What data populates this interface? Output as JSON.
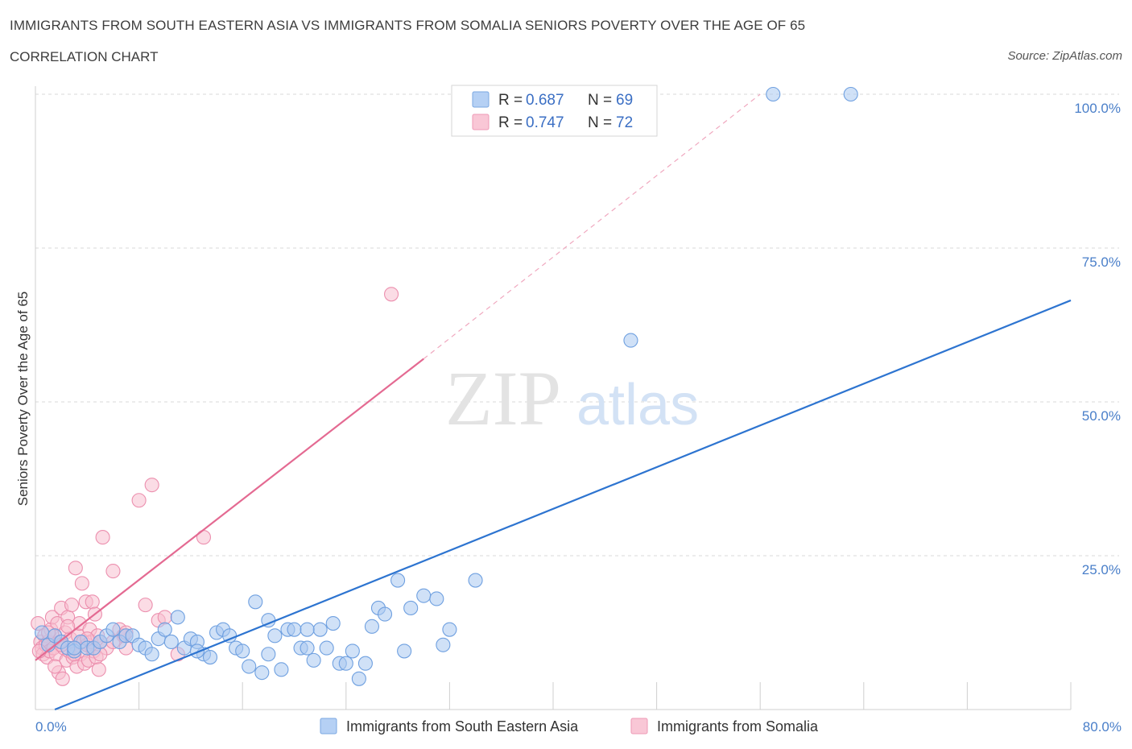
{
  "header": {
    "title": "IMMIGRANTS FROM SOUTH EASTERN ASIA VS IMMIGRANTS FROM SOMALIA SENIORS POVERTY OVER THE AGE OF 65",
    "subtitle": "CORRELATION CHART",
    "source": "Source: ZipAtlas.com"
  },
  "watermark": {
    "zip": "ZIP",
    "atlas": "atlas"
  },
  "legend": {
    "r_label": "R =",
    "n_label": "N =",
    "entries": [
      {
        "r": "0.687",
        "n": "69"
      },
      {
        "r": "0.747",
        "n": "72"
      }
    ]
  },
  "colors": {
    "blue_fill": "#a9c8f0",
    "blue_stroke": "#6fa0e0",
    "blue_line": "#2d74d0",
    "pink_fill": "#f7bfd0",
    "pink_stroke": "#ec8fae",
    "pink_line": "#e46a92",
    "grid": "#d9d9d9",
    "tick_text": "#4a7fc9"
  },
  "chart_data": {
    "type": "scatter",
    "title": "IMMIGRANTS FROM SOUTH EASTERN ASIA VS IMMIGRANTS FROM SOMALIA SENIORS POVERTY OVER THE AGE OF 65",
    "xlabel": "",
    "ylabel": "Seniors Poverty Over the Age of 65",
    "xlim": [
      0,
      80
    ],
    "ylim": [
      0,
      100
    ],
    "x_tick_labels": [
      "0.0%",
      "80.0%"
    ],
    "y_tick_labels": [
      "25.0%",
      "50.0%",
      "75.0%",
      "100.0%"
    ],
    "y_ticks": [
      25,
      50,
      75,
      100
    ],
    "x_gridlines": [
      0,
      8,
      16,
      24,
      32,
      40,
      48,
      56,
      64,
      72,
      80
    ],
    "legend_position": "top-center",
    "series": [
      {
        "name": "Immigrants from South Eastern Asia",
        "color": "#6fa0e0",
        "R": 0.687,
        "N": 69,
        "trend": {
          "x": [
            1.5,
            80
          ],
          "y": [
            0,
            66.5
          ]
        },
        "points": [
          [
            0.5,
            12.5
          ],
          [
            1,
            10.5
          ],
          [
            1.5,
            12
          ],
          [
            2,
            11
          ],
          [
            2.5,
            10
          ],
          [
            3,
            9.5
          ],
          [
            3.5,
            11
          ],
          [
            4,
            10
          ],
          [
            4.5,
            10
          ],
          [
            5,
            11
          ],
          [
            5.5,
            12
          ],
          [
            6,
            13
          ],
          [
            6.5,
            11
          ],
          [
            7,
            12
          ],
          [
            7.5,
            12
          ],
          [
            8,
            10.5
          ],
          [
            8.5,
            10
          ],
          [
            9,
            9
          ],
          [
            9.5,
            11.5
          ],
          [
            10,
            13
          ],
          [
            10.5,
            11
          ],
          [
            11,
            15
          ],
          [
            11.5,
            10
          ],
          [
            12,
            11.5
          ],
          [
            12.5,
            11
          ],
          [
            13,
            9
          ],
          [
            13.5,
            8.5
          ],
          [
            14,
            12.5
          ],
          [
            14.5,
            13
          ],
          [
            15,
            12
          ],
          [
            15.5,
            10
          ],
          [
            16,
            9.5
          ],
          [
            16.5,
            7
          ],
          [
            17,
            17.5
          ],
          [
            17.5,
            6
          ],
          [
            18,
            14.5
          ],
          [
            18.5,
            12
          ],
          [
            19,
            6.5
          ],
          [
            19.5,
            13
          ],
          [
            20,
            13
          ],
          [
            20.5,
            10
          ],
          [
            21,
            10
          ],
          [
            21.5,
            8
          ],
          [
            22,
            13
          ],
          [
            22.5,
            10
          ],
          [
            23,
            14
          ],
          [
            23.5,
            7.5
          ],
          [
            24,
            7.5
          ],
          [
            24.5,
            9.5
          ],
          [
            25,
            5
          ],
          [
            25.5,
            7.5
          ],
          [
            26,
            13.5
          ],
          [
            26.5,
            16.5
          ],
          [
            27,
            15.5
          ],
          [
            28,
            21
          ],
          [
            28.5,
            9.5
          ],
          [
            29,
            16.5
          ],
          [
            30,
            18.5
          ],
          [
            31,
            18
          ],
          [
            31.5,
            10.5
          ],
          [
            32,
            13
          ],
          [
            34,
            21
          ],
          [
            46,
            60
          ],
          [
            57,
            100
          ],
          [
            63,
            100
          ],
          [
            18,
            9
          ],
          [
            12.5,
            9.5
          ],
          [
            21,
            13
          ],
          [
            3,
            10
          ]
        ]
      },
      {
        "name": "Immigrants from Somalia",
        "color": "#ec8fae",
        "R": 0.747,
        "N": 72,
        "trend": {
          "x": [
            0,
            30
          ],
          "y": [
            8,
            57
          ]
        },
        "trend_dashed": {
          "x": [
            30,
            56
          ],
          "y": [
            57,
            100
          ]
        },
        "points": [
          [
            0.2,
            14
          ],
          [
            0.4,
            11
          ],
          [
            0.5,
            10
          ],
          [
            0.6,
            9
          ],
          [
            0.7,
            12
          ],
          [
            0.8,
            10.5
          ],
          [
            0.9,
            8.5
          ],
          [
            1,
            11
          ],
          [
            1.1,
            9.5
          ],
          [
            1.2,
            13
          ],
          [
            1.3,
            15
          ],
          [
            1.4,
            10
          ],
          [
            1.5,
            12
          ],
          [
            1.6,
            9
          ],
          [
            1.7,
            14
          ],
          [
            1.8,
            6
          ],
          [
            1.9,
            11
          ],
          [
            2,
            16.5
          ],
          [
            2.1,
            5
          ],
          [
            2.2,
            10
          ],
          [
            2.3,
            12.5
          ],
          [
            2.4,
            8
          ],
          [
            2.5,
            15
          ],
          [
            2.6,
            9.5
          ],
          [
            2.7,
            11.5
          ],
          [
            2.8,
            17
          ],
          [
            2.9,
            8.5
          ],
          [
            3,
            10
          ],
          [
            3.1,
            23
          ],
          [
            3.2,
            7
          ],
          [
            3.3,
            12
          ],
          [
            3.4,
            14
          ],
          [
            3.5,
            9
          ],
          [
            3.6,
            20.5
          ],
          [
            3.7,
            11
          ],
          [
            3.8,
            7.5
          ],
          [
            3.9,
            17.5
          ],
          [
            4,
            10.5
          ],
          [
            4.1,
            8
          ],
          [
            4.2,
            13
          ],
          [
            4.3,
            11
          ],
          [
            4.4,
            17.5
          ],
          [
            4.5,
            9.5
          ],
          [
            4.6,
            15.5
          ],
          [
            4.7,
            8.5
          ],
          [
            4.8,
            12
          ],
          [
            4.9,
            6.5
          ],
          [
            5,
            11
          ],
          [
            5.2,
            28
          ],
          [
            5.5,
            10
          ],
          [
            6,
            22.5
          ],
          [
            6.5,
            13
          ],
          [
            6.8,
            12
          ],
          [
            7,
            10
          ],
          [
            8,
            34
          ],
          [
            8.5,
            17
          ],
          [
            9,
            36.5
          ],
          [
            9.5,
            14.5
          ],
          [
            10,
            15
          ],
          [
            11,
            9
          ],
          [
            13,
            28
          ],
          [
            27.5,
            67.5
          ],
          [
            0.3,
            9.5
          ],
          [
            1,
            12.5
          ],
          [
            2,
            10.5
          ],
          [
            3,
            9
          ],
          [
            4,
            11.5
          ],
          [
            5,
            9
          ],
          [
            6,
            11
          ],
          [
            7,
            12.5
          ],
          [
            1.5,
            7
          ],
          [
            2.5,
            13.5
          ]
        ]
      }
    ]
  },
  "bottom_legend": [
    {
      "label": "Immigrants from South Eastern Asia"
    },
    {
      "label": "Immigrants from Somalia"
    }
  ]
}
